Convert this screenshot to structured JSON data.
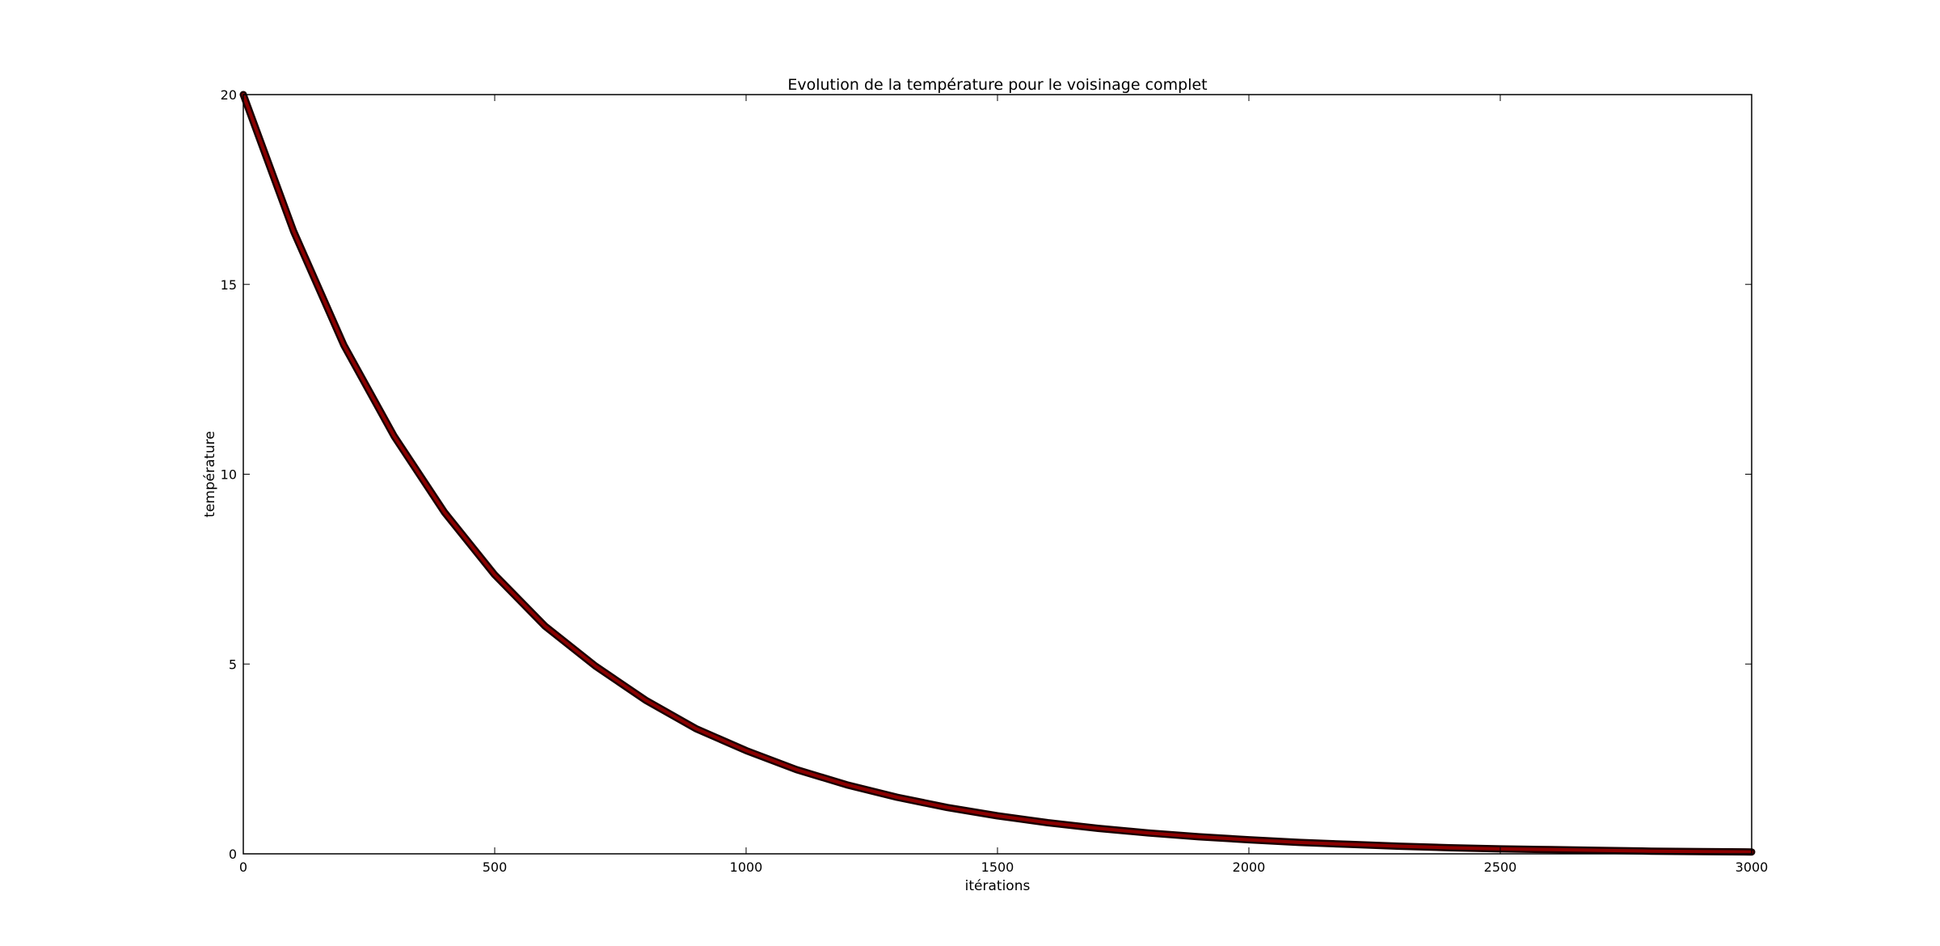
{
  "chart_data": {
    "type": "line",
    "title": "Evolution de la température pour le voisinage complet",
    "xlabel": "itérations",
    "ylabel": "température",
    "xlim": [
      0,
      3000
    ],
    "ylim": [
      0,
      20
    ],
    "xticks": [
      0,
      500,
      1000,
      1500,
      2000,
      2500,
      3000
    ],
    "yticks": [
      0,
      5,
      10,
      15,
      20
    ],
    "xtick_labels": [
      "0",
      "500",
      "1000",
      "1500",
      "2000",
      "2500",
      "3000"
    ],
    "ytick_labels": [
      "0",
      "5",
      "10",
      "15",
      "20"
    ],
    "grid": false,
    "legend": "none",
    "series": [
      {
        "color": "#8b0000",
        "x": [
          0,
          100,
          200,
          300,
          400,
          500,
          600,
          700,
          800,
          900,
          1000,
          1100,
          1200,
          1300,
          1400,
          1500,
          1600,
          1700,
          1800,
          1900,
          2000,
          2100,
          2200,
          2300,
          2400,
          2500,
          2600,
          2700,
          2800,
          2900,
          3000
        ],
        "y": [
          20,
          16.4,
          13.4,
          11.0,
          9.0,
          7.35,
          6.0,
          4.95,
          4.05,
          3.3,
          2.72,
          2.22,
          1.82,
          1.49,
          1.22,
          1.0,
          0.82,
          0.67,
          0.55,
          0.45,
          0.37,
          0.3,
          0.25,
          0.2,
          0.16,
          0.13,
          0.11,
          0.09,
          0.07,
          0.06,
          0.05
        ]
      }
    ]
  }
}
